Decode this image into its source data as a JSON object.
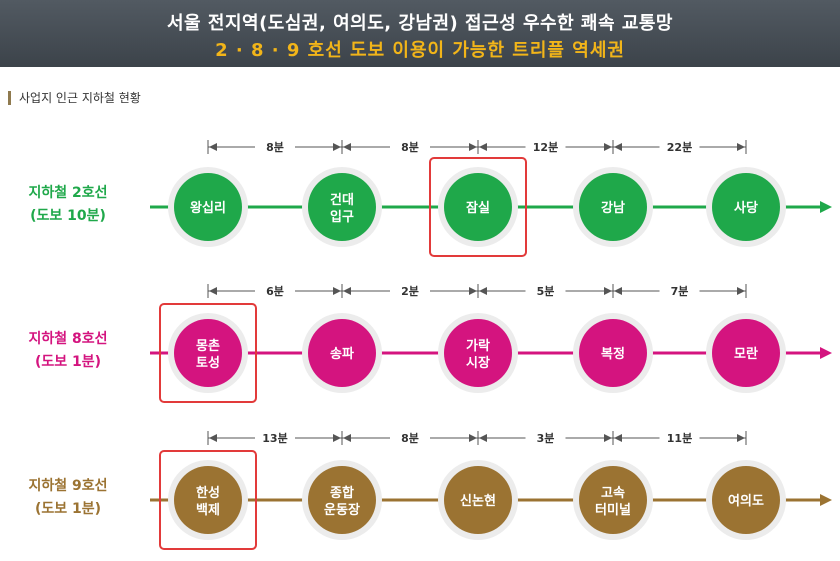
{
  "header": {
    "title": "서울 전지역(도심권, 여의도, 강남권) 접근성 우수한 쾌속 교통망",
    "subtitle": "2 · 8 · 9 호선 도보 이용이 가능한 트리플 역세권"
  },
  "section_label": "사업지 인근 지하철 현황",
  "colors": {
    "line2": "#1fa84a",
    "line8": "#d4147f",
    "line9": "#9b7332",
    "highlight": "#e23a3a",
    "banner": "#4a5158",
    "subtitle": "#f2b519"
  },
  "lines": [
    {
      "name": "지하철 2호선",
      "walk": "(도보 10분)",
      "color_key": "line2",
      "stations": [
        [
          "왕십리"
        ],
        [
          "건대",
          "입구"
        ],
        [
          "잠실"
        ],
        [
          "강남"
        ],
        [
          "사당"
        ]
      ],
      "durations": [
        "8분",
        "8분",
        "12분",
        "22분"
      ],
      "highlight_index": 2
    },
    {
      "name": "지하철 8호선",
      "walk": "(도보 1분)",
      "color_key": "line8",
      "stations": [
        [
          "몽촌",
          "토성"
        ],
        [
          "송파"
        ],
        [
          "가락",
          "시장"
        ],
        [
          "복정"
        ],
        [
          "모란"
        ]
      ],
      "durations": [
        "6분",
        "2분",
        "5분",
        "7분"
      ],
      "highlight_index": 0
    },
    {
      "name": "지하철 9호선",
      "walk": "(도보 1분)",
      "color_key": "line9",
      "stations": [
        [
          "한성",
          "백제"
        ],
        [
          "종합",
          "운동장"
        ],
        [
          "신논현"
        ],
        [
          "고속",
          "터미널"
        ],
        [
          "여의도"
        ]
      ],
      "durations": [
        "13분",
        "8분",
        "3분",
        "11분"
      ],
      "highlight_index": 0
    }
  ]
}
